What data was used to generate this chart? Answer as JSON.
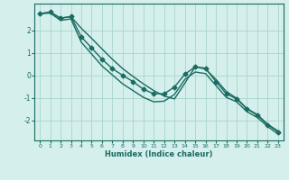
{
  "xlabel": "Humidex (Indice chaleur)",
  "ylabel": "",
  "background_color": "#d4efec",
  "grid_color": "#aad4cf",
  "line_color": "#1a6b60",
  "xlim": [
    -0.5,
    23.5
  ],
  "ylim": [
    -2.9,
    3.2
  ],
  "yticks": [
    -2,
    -1,
    0,
    1,
    2
  ],
  "xticks": [
    0,
    1,
    2,
    3,
    4,
    5,
    6,
    7,
    8,
    9,
    10,
    11,
    12,
    13,
    14,
    15,
    16,
    17,
    18,
    19,
    20,
    21,
    22,
    23
  ],
  "main_x": [
    0,
    1,
    2,
    3,
    4,
    5,
    6,
    7,
    8,
    9,
    10,
    11,
    12,
    13,
    14,
    15,
    16,
    17,
    18,
    19,
    20,
    21,
    22,
    23
  ],
  "main_y": [
    2.75,
    2.82,
    2.55,
    2.62,
    1.72,
    1.22,
    0.72,
    0.3,
    0.0,
    -0.28,
    -0.62,
    -0.82,
    -0.82,
    -0.52,
    0.05,
    0.38,
    0.32,
    -0.28,
    -0.82,
    -1.05,
    -1.5,
    -1.78,
    -2.2,
    -2.52
  ],
  "upper_x": [
    0,
    1,
    2,
    3,
    4,
    5,
    6,
    7,
    8,
    9,
    10,
    11,
    12,
    13,
    14,
    15,
    16,
    17,
    18,
    19,
    20,
    21,
    22,
    23
  ],
  "upper_y": [
    2.75,
    2.82,
    2.55,
    2.62,
    2.1,
    1.65,
    1.18,
    0.72,
    0.3,
    -0.05,
    -0.38,
    -0.68,
    -0.92,
    -1.05,
    -0.35,
    0.38,
    0.28,
    -0.18,
    -0.72,
    -1.02,
    -1.48,
    -1.75,
    -2.18,
    -2.48
  ],
  "lower_x": [
    0,
    1,
    2,
    3,
    4,
    5,
    6,
    7,
    8,
    9,
    10,
    11,
    12,
    13,
    14,
    15,
    16,
    17,
    18,
    19,
    20,
    21,
    22,
    23
  ],
  "lower_y": [
    2.75,
    2.78,
    2.45,
    2.52,
    1.48,
    0.95,
    0.42,
    0.02,
    -0.38,
    -0.68,
    -0.98,
    -1.18,
    -1.15,
    -0.85,
    -0.18,
    0.15,
    0.08,
    -0.45,
    -0.98,
    -1.18,
    -1.62,
    -1.88,
    -2.28,
    -2.62
  ],
  "marker": "D",
  "markersize": 2.5,
  "linewidth": 1.0
}
